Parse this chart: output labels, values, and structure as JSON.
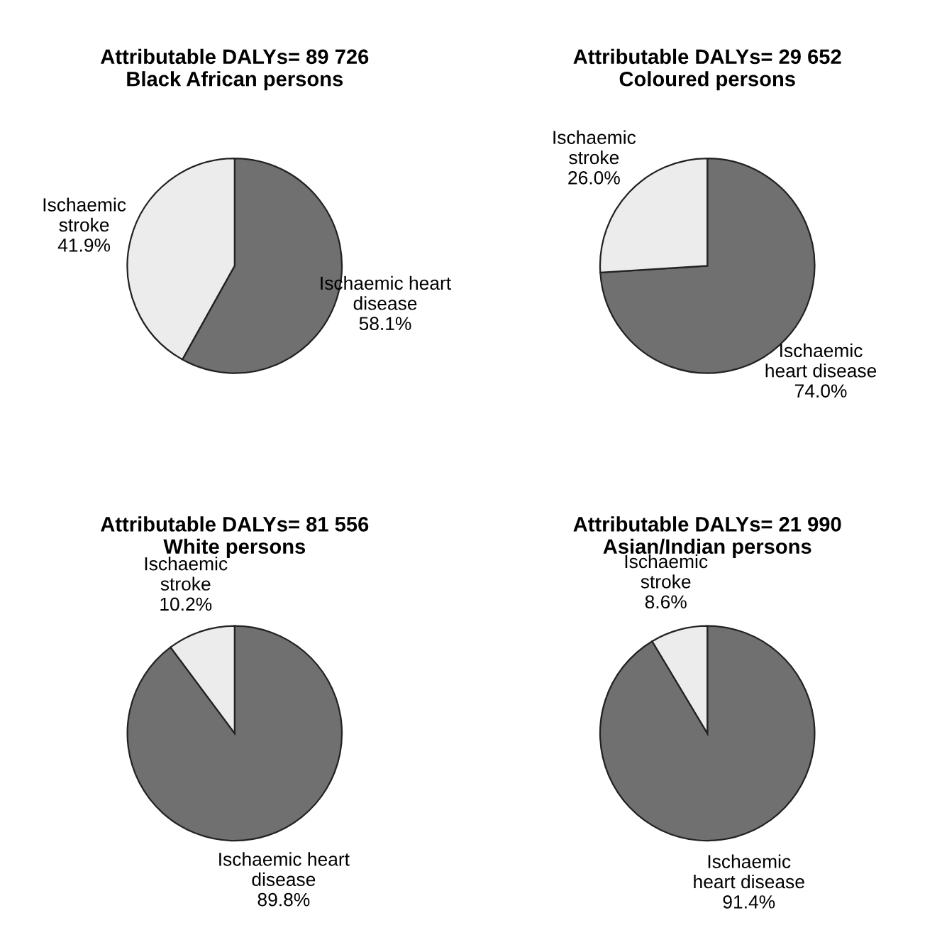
{
  "chart_data": [
    {
      "type": "pie",
      "title": "Attributable DALYs= 89 726\nBlack African persons",
      "categories": [
        "Ischaemic heart\ndisease",
        "Ischaemic\nstroke"
      ],
      "values": [
        58.1,
        41.9
      ],
      "value_labels": [
        "58.1%",
        "41.9%"
      ],
      "colors": [
        "#707070",
        "#ececec"
      ]
    },
    {
      "type": "pie",
      "title": "Attributable DALYs= 29 652\nColoured persons",
      "categories": [
        "Ischaemic\nheart disease",
        "Ischaemic\nstroke"
      ],
      "values": [
        74.0,
        26.0
      ],
      "value_labels": [
        "74.0%",
        "26.0%"
      ],
      "colors": [
        "#707070",
        "#ececec"
      ]
    },
    {
      "type": "pie",
      "title": "Attributable DALYs= 81 556\nWhite persons",
      "categories": [
        "Ischaemic heart\ndisease",
        "Ischaemic\nstroke"
      ],
      "values": [
        89.8,
        10.2
      ],
      "value_labels": [
        "89.8%",
        "10.2%"
      ],
      "colors": [
        "#707070",
        "#ececec"
      ]
    },
    {
      "type": "pie",
      "title": "Attributable DALYs= 21 990\nAsian/Indian persons",
      "categories": [
        "Ischaemic\nheart disease",
        "Ischaemic\nstroke"
      ],
      "values": [
        91.4,
        8.6
      ],
      "value_labels": [
        "91.4%",
        "8.6%"
      ],
      "colors": [
        "#707070",
        "#ececec"
      ]
    }
  ]
}
